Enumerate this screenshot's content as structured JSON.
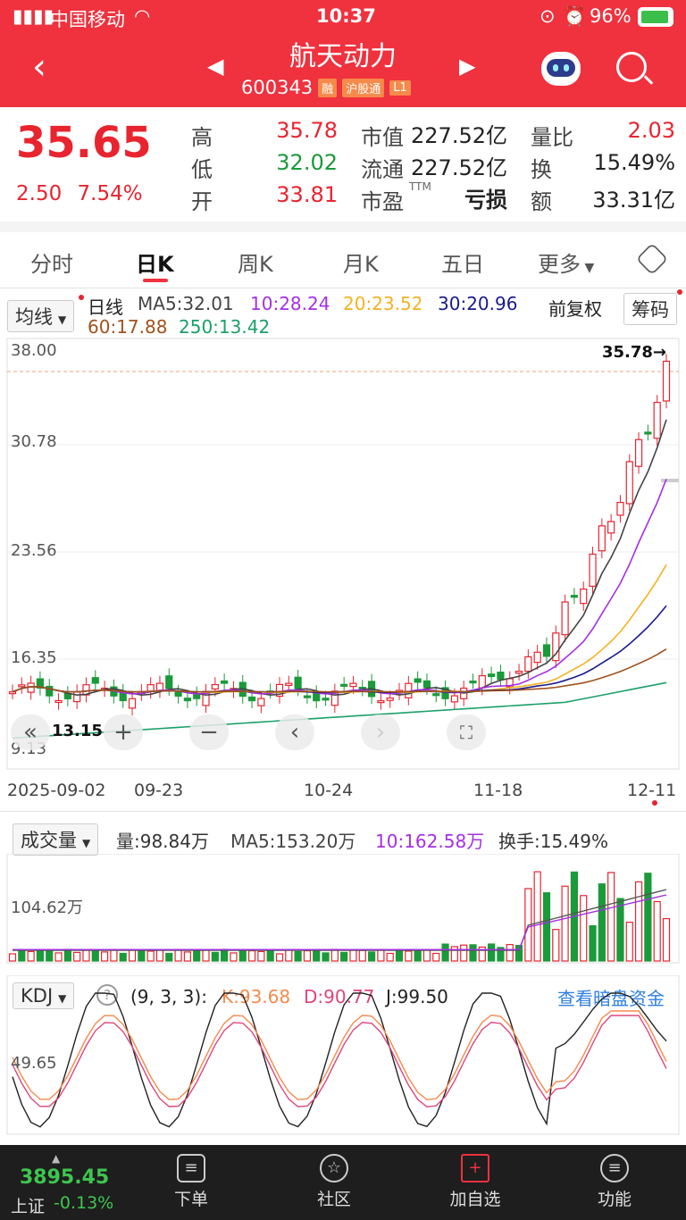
{
  "status_bar": {
    "carrier": "中国移动",
    "time": "10:37",
    "battery": "96%"
  },
  "header": {
    "title": "航天动力",
    "code": "600343",
    "tags": [
      "融",
      "沪股通",
      "L1"
    ]
  },
  "quote": {
    "price": "35.65",
    "change": "2.50",
    "change_pct": "7.54%",
    "high_label": "高",
    "high": "35.78",
    "low_label": "低",
    "low": "32.02",
    "open_label": "开",
    "open": "33.81",
    "mktcap_label": "市值",
    "mktcap": "227.52亿",
    "float_label": "流通",
    "float": "227.52亿",
    "pe_label": "市盈",
    "pe_sup": "TTM",
    "pe": "亏损",
    "volratio_label": "量比",
    "volratio": "2.03",
    "turnover_label": "换",
    "turnover": "15.49%",
    "amount_label": "额",
    "amount": "33.31亿"
  },
  "tabs": [
    "分时",
    "日K",
    "周K",
    "月K",
    "五日",
    "更多"
  ],
  "kline": {
    "ma_select": "均线",
    "period_label": "日线",
    "ma5": "MA5:32.01",
    "ma10": "10:28.24",
    "ma20": "20:23.52",
    "ma30": "30:20.96",
    "ma60": "60:17.88",
    "ma250": "250:13.42",
    "adjust": "前复权",
    "chip_button": "筹码",
    "y_labels": [
      "38.00",
      "30.78",
      "23.56",
      "16.35",
      "9.13"
    ],
    "max_marker": "35.78→",
    "min_marker": "13.15",
    "dates": [
      "2025-09-02",
      "09-23",
      "10-24",
      "11-18",
      "12-11"
    ]
  },
  "volume": {
    "select": "成交量",
    "vol": "量:98.84万",
    "ma5": "MA5:153.20万",
    "ma10": "10:162.58万",
    "turnover": "换手:15.49%",
    "y_label": "104.62万"
  },
  "kdj": {
    "select": "KDJ",
    "params": "(9, 3, 3):",
    "k": "K:93.68",
    "d": "D:90.77",
    "j": "J:99.50",
    "link": "查看暗盘资金",
    "y_label": "49.65"
  },
  "bottom": {
    "index_value": "3895.45",
    "index_name": "上证",
    "index_change": "-0.13%",
    "nav": [
      "下单",
      "社区",
      "加自选",
      "功能"
    ]
  },
  "colors": {
    "up": "#e8242f",
    "down": "#1a9a3a",
    "ma5": "#444444",
    "ma10": "#a52fe6",
    "ma20": "#f3b321",
    "ma30": "#1a1a8e",
    "ma60": "#a0521c",
    "ma250": "#1aa06a"
  }
}
